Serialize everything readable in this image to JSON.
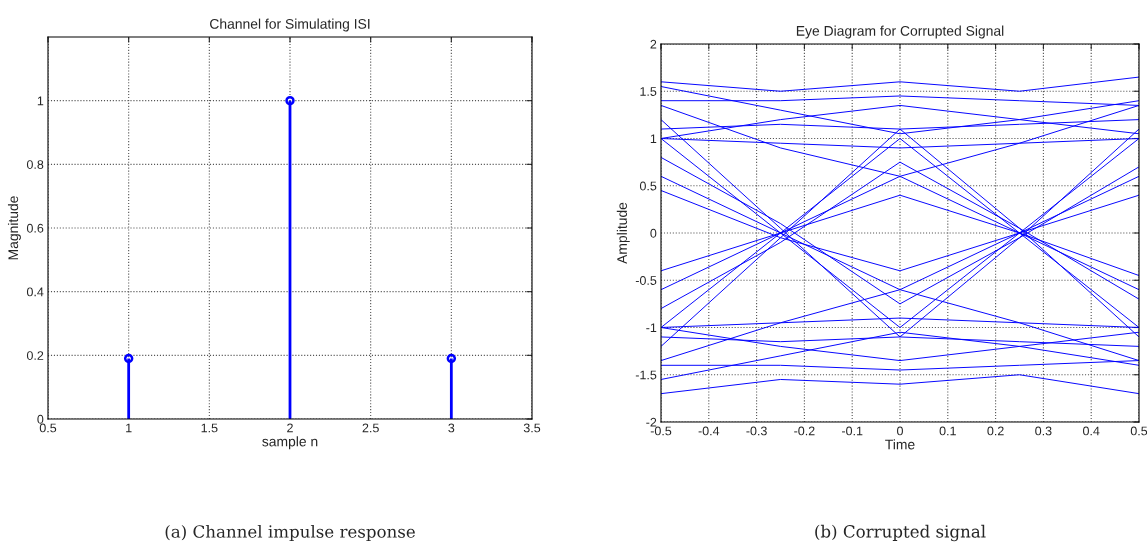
{
  "chart_data": [
    {
      "type": "lollipop",
      "title": "Channel for Simulating ISI",
      "xlabel": "sample n",
      "ylabel": "Magnitude",
      "x": [
        1,
        2,
        3
      ],
      "values": [
        0.19,
        1,
        0.19
      ],
      "color": "#0000ff",
      "marker": "circle",
      "xlim": [
        0.5,
        3.5
      ],
      "xticks": [
        0.5,
        1,
        1.5,
        2,
        2.5,
        3,
        3.5
      ],
      "ylim": [
        0,
        1.2
      ],
      "yticks": [
        0,
        0.2,
        0.4,
        0.6,
        0.8,
        1
      ],
      "grid": true,
      "annotations": [
        "(a) Channel impulse response"
      ]
    },
    {
      "type": "line",
      "title": "Eye Diagram for Corrupted Signal",
      "xlabel": "Time",
      "ylabel": "Amplitude",
      "x": [
        -0.5,
        -0.25,
        0,
        0.25,
        0.5
      ],
      "series": [
        {
          "color": "#0000ff",
          "values": [
            1.4,
            1.4,
            1.45,
            1.4,
            1.35
          ]
        },
        {
          "color": "#0000ff",
          "values": [
            1.0,
            1.2,
            1.35,
            1.2,
            1.05
          ]
        },
        {
          "color": "#0000ff",
          "values": [
            1.55,
            1.3,
            1.05,
            1.2,
            1.4
          ]
        },
        {
          "color": "#0000ff",
          "values": [
            1.0,
            0.95,
            0.9,
            0.95,
            1.0
          ]
        },
        {
          "color": "#0000ff",
          "values": [
            1.35,
            0.9,
            0.6,
            0.0,
            -0.6
          ]
        },
        {
          "color": "#0000ff",
          "values": [
            0.6,
            0.0,
            -0.6,
            -0.95,
            -1.35
          ]
        },
        {
          "color": "#0000ff",
          "values": [
            -0.6,
            0.0,
            0.6,
            0.95,
            1.35
          ]
        },
        {
          "color": "#0000ff",
          "values": [
            -1.35,
            -0.95,
            -0.6,
            0.0,
            0.6
          ]
        },
        {
          "color": "#0000ff",
          "values": [
            1.0,
            0.0,
            -1.0,
            0.0,
            1.0
          ]
        },
        {
          "color": "#0000ff",
          "values": [
            -1.0,
            0.0,
            1.0,
            0.0,
            -1.0
          ]
        },
        {
          "color": "#0000ff",
          "values": [
            0.45,
            -0.05,
            -0.4,
            0.0,
            0.4
          ]
        },
        {
          "color": "#0000ff",
          "values": [
            -0.4,
            0.0,
            0.4,
            0.0,
            -0.45
          ]
        },
        {
          "color": "#0000ff",
          "values": [
            -1.4,
            -1.4,
            -1.45,
            -1.4,
            -1.35
          ]
        },
        {
          "color": "#0000ff",
          "values": [
            -1.0,
            -1.2,
            -1.35,
            -1.2,
            -1.05
          ]
        },
        {
          "color": "#0000ff",
          "values": [
            -1.55,
            -1.3,
            -1.05,
            -1.2,
            -1.4
          ]
        },
        {
          "color": "#0000ff",
          "values": [
            -1.0,
            -0.95,
            -0.9,
            -0.95,
            -1.0
          ]
        },
        {
          "color": "#0000ff",
          "values": [
            1.6,
            1.5,
            1.6,
            1.5,
            1.65
          ]
        },
        {
          "color": "#0000ff",
          "values": [
            -1.7,
            -1.55,
            -1.6,
            -1.5,
            -1.7
          ]
        },
        {
          "color": "#0000ff",
          "values": [
            1.2,
            0.05,
            -1.1,
            -1.15,
            -1.2
          ]
        },
        {
          "color": "#0000ff",
          "values": [
            -1.2,
            -0.05,
            1.1,
            1.15,
            1.2
          ]
        },
        {
          "color": "#0000ff",
          "values": [
            1.1,
            1.15,
            1.1,
            0.05,
            -1.1
          ]
        },
        {
          "color": "#0000ff",
          "values": [
            -1.1,
            -1.15,
            -1.1,
            -0.05,
            1.1
          ]
        },
        {
          "color": "#0000ff",
          "values": [
            0.8,
            0.1,
            -0.75,
            -0.05,
            0.7
          ]
        },
        {
          "color": "#0000ff",
          "values": [
            -0.8,
            -0.1,
            0.75,
            0.05,
            -0.7
          ]
        }
      ],
      "xlim": [
        -0.5,
        0.5
      ],
      "xticks": [
        -0.5,
        -0.4,
        -0.3,
        -0.2,
        -0.1,
        0,
        0.1,
        0.2,
        0.3,
        0.4,
        0.5
      ],
      "ylim": [
        -2,
        2
      ],
      "yticks": [
        -2,
        -1.5,
        -1,
        -0.5,
        0,
        0.5,
        1,
        1.5,
        2
      ],
      "grid": true,
      "marker": "none",
      "line_style": "solid",
      "annotations": [
        "(b) Corrupted signal"
      ]
    }
  ]
}
